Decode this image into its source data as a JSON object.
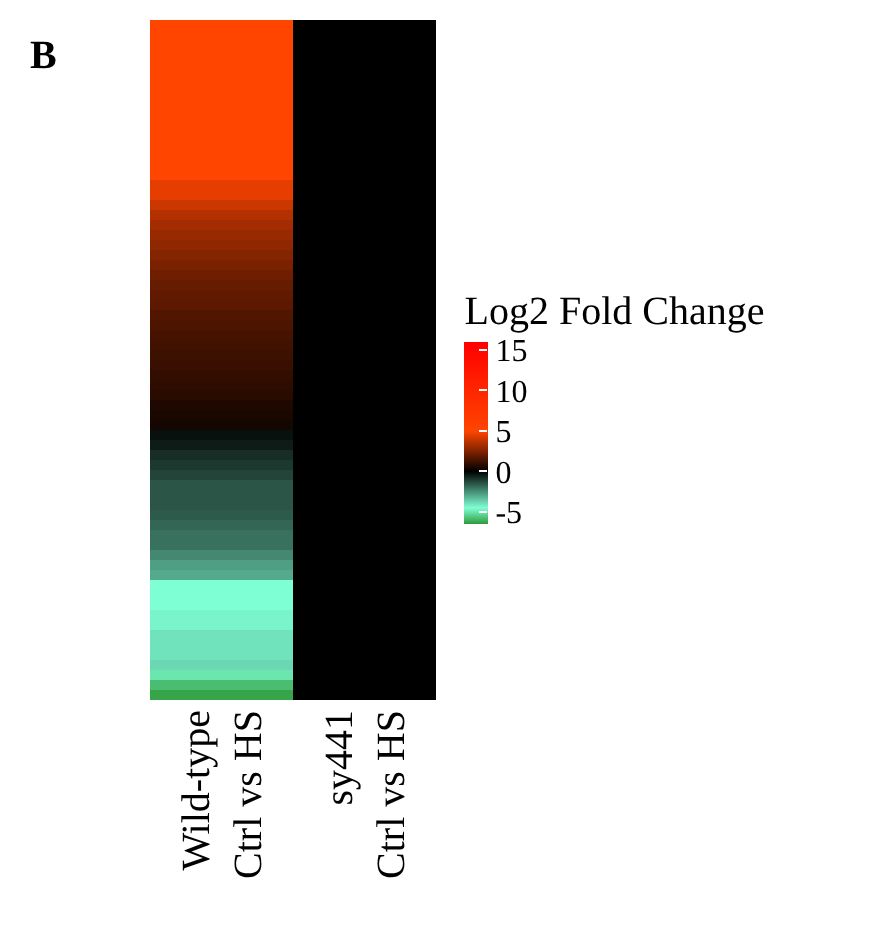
{
  "chart_data": {
    "type": "heatmap",
    "title": "B",
    "categories": [
      "Wild-type\nCtrl vs HS",
      "sy441\nCtrl vs HS"
    ],
    "y_categories": [
      null,
      null,
      null,
      null,
      null,
      null,
      null,
      null,
      null,
      null,
      null,
      null,
      null,
      null,
      null,
      null,
      null,
      null,
      null,
      null,
      null,
      null,
      null,
      null,
      null,
      null,
      null,
      null,
      null,
      null,
      null,
      null,
      null,
      null,
      null,
      null,
      null,
      null,
      null,
      null,
      null,
      null,
      null,
      null,
      null,
      null,
      null,
      null,
      null,
      null,
      null,
      null,
      null,
      null,
      null,
      null,
      null,
      null,
      null,
      null,
      null,
      null,
      null,
      null,
      null,
      null,
      null,
      null
    ],
    "cells": [
      [
        5,
        0
      ],
      [
        5,
        0
      ],
      [
        5,
        0
      ],
      [
        5,
        0
      ],
      [
        5,
        0
      ],
      [
        5,
        0
      ],
      [
        5,
        0
      ],
      [
        5,
        0
      ],
      [
        5,
        0
      ],
      [
        5,
        0
      ],
      [
        5,
        0
      ],
      [
        5,
        0
      ],
      [
        5,
        0
      ],
      [
        5,
        0
      ],
      [
        5,
        0
      ],
      [
        5,
        0
      ],
      [
        4.5,
        0
      ],
      [
        4.5,
        0
      ],
      [
        4,
        0
      ],
      [
        3.5,
        0
      ],
      [
        3.2,
        0
      ],
      [
        3,
        0
      ],
      [
        2.8,
        0
      ],
      [
        2.6,
        0
      ],
      [
        2.4,
        0
      ],
      [
        2.2,
        0
      ],
      [
        2,
        0
      ],
      [
        1.9,
        0
      ],
      [
        1.8,
        0
      ],
      [
        1.6,
        0
      ],
      [
        1.5,
        0
      ],
      [
        1.4,
        0
      ],
      [
        1.3,
        0
      ],
      [
        1.2,
        0
      ],
      [
        1.1,
        0
      ],
      [
        1,
        0
      ],
      [
        0.9,
        0
      ],
      [
        0.8,
        0
      ],
      [
        0.6,
        0
      ],
      [
        0.5,
        0
      ],
      [
        0.4,
        0
      ],
      [
        -0.3,
        0
      ],
      [
        -0.5,
        0
      ],
      [
        -0.8,
        0
      ],
      [
        -1,
        0
      ],
      [
        -1.2,
        0
      ],
      [
        -1.5,
        0
      ],
      [
        -1.5,
        0
      ],
      [
        -1.5,
        0
      ],
      [
        -1.6,
        0
      ],
      [
        -1.8,
        0
      ],
      [
        -2,
        0
      ],
      [
        -2,
        0
      ],
      [
        -2.4,
        0
      ],
      [
        -2.8,
        0
      ],
      [
        -3,
        0
      ],
      [
        -4.5,
        0
      ],
      [
        -4.5,
        0
      ],
      [
        -4.5,
        0
      ],
      [
        -4.3,
        0
      ],
      [
        -4.3,
        0
      ],
      [
        -4,
        0
      ],
      [
        -4,
        0
      ],
      [
        -4,
        0
      ],
      [
        -3.8,
        0
      ],
      [
        -5,
        0
      ],
      [
        -5.8,
        0
      ],
      [
        -6.3,
        0
      ]
    ],
    "clabel": "Log2 Fold Change",
    "clim": [
      -6.5,
      16
    ],
    "cticks": [
      -5,
      0,
      5,
      10,
      15
    ]
  }
}
